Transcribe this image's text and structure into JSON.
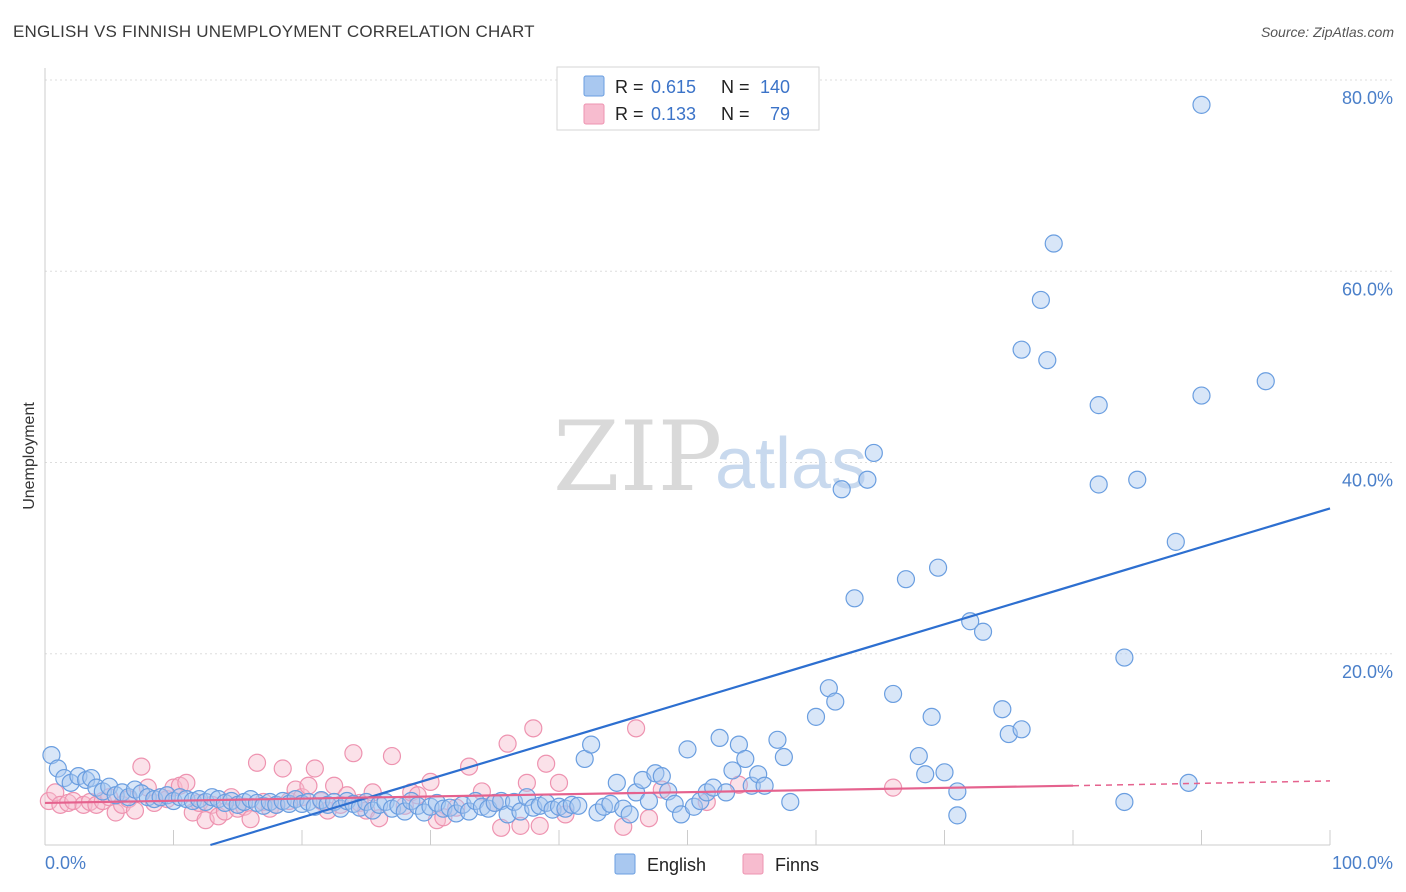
{
  "title": "ENGLISH VS FINNISH UNEMPLOYMENT CORRELATION CHART",
  "source": "Source: ZipAtlas.com",
  "watermark": {
    "zip": "ZIP",
    "atlas": "atlas"
  },
  "colors": {
    "english_fill": "#a9c8f0",
    "english_stroke": "#6a9ee0",
    "english_line": "#2d6fd0",
    "finns_fill": "#f7bccf",
    "finns_stroke": "#ee93b0",
    "finns_line": "#e5628e",
    "tick_text": "#4a7fc9",
    "grid": "#dddddd"
  },
  "legend_top": {
    "rows": [
      {
        "r_label": "R = ",
        "r_value": "0.615",
        "n_label": "N = ",
        "n_value": "140"
      },
      {
        "r_label": "R = ",
        "r_value": "0.133",
        "n_label": "N = ",
        "n_value": "79"
      }
    ]
  },
  "legend_bottom": [
    "English",
    "Finns"
  ],
  "chart_data": {
    "type": "scatter",
    "xlabel": "",
    "ylabel": "Unemployment",
    "xlim": [
      0,
      100
    ],
    "ylim": [
      0,
      80
    ],
    "x_tick_labels": [
      "0.0%",
      "100.0%"
    ],
    "y_ticks": [
      20,
      40,
      60,
      80
    ],
    "y_tick_labels": [
      "20.0%",
      "40.0%",
      "60.0%",
      "80.0%"
    ],
    "grid": true,
    "legend_position": "top-center",
    "series": [
      {
        "name": "English",
        "trend": {
          "x0": 0,
          "y0": -5.2,
          "x1": 100,
          "y1": 35.2
        },
        "points": [
          [
            0.5,
            9.4
          ],
          [
            1,
            8
          ],
          [
            1.5,
            7
          ],
          [
            2,
            6.5
          ],
          [
            2.6,
            7.2
          ],
          [
            3.2,
            6.8
          ],
          [
            3.6,
            7
          ],
          [
            4,
            6
          ],
          [
            4.5,
            5.6
          ],
          [
            5,
            6.1
          ],
          [
            5.5,
            5.2
          ],
          [
            6,
            5.5
          ],
          [
            6.5,
            5
          ],
          [
            7,
            5.8
          ],
          [
            7.5,
            5.4
          ],
          [
            8,
            5
          ],
          [
            8.5,
            4.8
          ],
          [
            9,
            5
          ],
          [
            9.5,
            5.2
          ],
          [
            10,
            4.6
          ],
          [
            10.5,
            5
          ],
          [
            11,
            4.8
          ],
          [
            11.5,
            4.6
          ],
          [
            12,
            4.8
          ],
          [
            12.5,
            4.5
          ],
          [
            13,
            5
          ],
          [
            13.5,
            4.8
          ],
          [
            14,
            4.4
          ],
          [
            14.5,
            4.6
          ],
          [
            15,
            4.2
          ],
          [
            15.5,
            4.5
          ],
          [
            16,
            4.8
          ],
          [
            16.5,
            4.4
          ],
          [
            17,
            4.1
          ],
          [
            17.5,
            4.5
          ],
          [
            18,
            4.2
          ],
          [
            18.5,
            4.6
          ],
          [
            19,
            4.3
          ],
          [
            19.5,
            4.8
          ],
          [
            20,
            4.3
          ],
          [
            20.5,
            4.5
          ],
          [
            21,
            4
          ],
          [
            21.5,
            4.7
          ],
          [
            22,
            4.2
          ],
          [
            22.5,
            4.5
          ],
          [
            23,
            3.8
          ],
          [
            23.5,
            4.6
          ],
          [
            24,
            4.3
          ],
          [
            24.5,
            3.9
          ],
          [
            25,
            4.5
          ],
          [
            25.5,
            3.6
          ],
          [
            26,
            4.2
          ],
          [
            26.5,
            4.5
          ],
          [
            27,
            3.8
          ],
          [
            27.5,
            4.1
          ],
          [
            28,
            3.5
          ],
          [
            28.5,
            4.6
          ],
          [
            29,
            4.1
          ],
          [
            29.5,
            3.4
          ],
          [
            30,
            4
          ],
          [
            30.5,
            4.4
          ],
          [
            31,
            3.8
          ],
          [
            31.5,
            3.9
          ],
          [
            32,
            3.3
          ],
          [
            32.5,
            4.2
          ],
          [
            33,
            3.5
          ],
          [
            33.5,
            4.6
          ],
          [
            34,
            4
          ],
          [
            34.5,
            3.8
          ],
          [
            35,
            4.4
          ],
          [
            35.5,
            4.6
          ],
          [
            36,
            3.2
          ],
          [
            36.5,
            4.5
          ],
          [
            37,
            3.5
          ],
          [
            37.5,
            5
          ],
          [
            38,
            3.9
          ],
          [
            38.5,
            4.1
          ],
          [
            39,
            4.4
          ],
          [
            39.5,
            3.7
          ],
          [
            40,
            4
          ],
          [
            40.5,
            3.8
          ],
          [
            41,
            4.2
          ],
          [
            41.5,
            4.1
          ],
          [
            42,
            9
          ],
          [
            42.5,
            10.5
          ],
          [
            43,
            3.4
          ],
          [
            43.5,
            4
          ],
          [
            44,
            4.3
          ],
          [
            44.5,
            6.5
          ],
          [
            45,
            3.8
          ],
          [
            45.5,
            3.2
          ],
          [
            46,
            5.5
          ],
          [
            46.5,
            6.8
          ],
          [
            47,
            4.6
          ],
          [
            47.5,
            7.5
          ],
          [
            48,
            7.2
          ],
          [
            48.5,
            5.6
          ],
          [
            49,
            4.3
          ],
          [
            49.5,
            3.2
          ],
          [
            50,
            10
          ],
          [
            50.5,
            4
          ],
          [
            51,
            4.6
          ],
          [
            51.5,
            5.5
          ],
          [
            52,
            6
          ],
          [
            52.5,
            11.2
          ],
          [
            53,
            5.5
          ],
          [
            53.5,
            7.8
          ],
          [
            54,
            10.5
          ],
          [
            54.5,
            9
          ],
          [
            55,
            6.2
          ],
          [
            55.5,
            7.4
          ],
          [
            56,
            6.2
          ],
          [
            57,
            11
          ],
          [
            57.5,
            9.2
          ],
          [
            58,
            4.5
          ],
          [
            60,
            13.4
          ],
          [
            61,
            16.4
          ],
          [
            61.5,
            15
          ],
          [
            62,
            37.2
          ],
          [
            63,
            25.8
          ],
          [
            64,
            38.2
          ],
          [
            64.5,
            41
          ],
          [
            66,
            15.8
          ],
          [
            67,
            27.8
          ],
          [
            68,
            9.3
          ],
          [
            68.5,
            7.4
          ],
          [
            69,
            13.4
          ],
          [
            69.5,
            29
          ],
          [
            70,
            7.6
          ],
          [
            71,
            5.6
          ],
          [
            71,
            3.1
          ],
          [
            72,
            23.4
          ],
          [
            73,
            22.3
          ],
          [
            74.5,
            14.2
          ],
          [
            75,
            11.6
          ],
          [
            76,
            51.8
          ],
          [
            76,
            12.1
          ],
          [
            77.5,
            57
          ],
          [
            78,
            50.7
          ],
          [
            78.5,
            62.9
          ],
          [
            82,
            46
          ],
          [
            82,
            37.7
          ],
          [
            84,
            4.5
          ],
          [
            84,
            19.6
          ],
          [
            85,
            38.2
          ],
          [
            88,
            31.7
          ],
          [
            89,
            6.5
          ],
          [
            90,
            47
          ],
          [
            90,
            77.4
          ],
          [
            95,
            48.5
          ]
        ]
      },
      {
        "name": "Finns",
        "trend": {
          "x0": 0,
          "y0": 4.4,
          "x1": 80,
          "y1": 6.2
        },
        "trend_dashed": {
          "x0": 80,
          "y0": 6.2,
          "x1": 100,
          "y1": 6.7
        },
        "points": [
          [
            0.3,
            4.6
          ],
          [
            0.8,
            5.5
          ],
          [
            1.2,
            4.2
          ],
          [
            1.8,
            4.4
          ],
          [
            2.2,
            4.6
          ],
          [
            3,
            4.2
          ],
          [
            3.5,
            4.5
          ],
          [
            4,
            4.2
          ],
          [
            4.5,
            4.6
          ],
          [
            5,
            5
          ],
          [
            5.5,
            3.4
          ],
          [
            6,
            4.2
          ],
          [
            6.5,
            4.8
          ],
          [
            7,
            3.6
          ],
          [
            7.5,
            8.2
          ],
          [
            8,
            6
          ],
          [
            8.5,
            4.4
          ],
          [
            9,
            5
          ],
          [
            9.5,
            4.8
          ],
          [
            10,
            6
          ],
          [
            10.5,
            6.2
          ],
          [
            11,
            6.5
          ],
          [
            11.5,
            3.4
          ],
          [
            12,
            4.4
          ],
          [
            12.5,
            2.6
          ],
          [
            13,
            4.2
          ],
          [
            13.5,
            3
          ],
          [
            14,
            3.5
          ],
          [
            14.5,
            5
          ],
          [
            15,
            3.8
          ],
          [
            15.5,
            4
          ],
          [
            16,
            2.7
          ],
          [
            16.5,
            8.6
          ],
          [
            17,
            4.5
          ],
          [
            17.5,
            3.8
          ],
          [
            18,
            4.2
          ],
          [
            18.5,
            8
          ],
          [
            19,
            4.6
          ],
          [
            19.5,
            5.8
          ],
          [
            20,
            5
          ],
          [
            20.5,
            6.2
          ],
          [
            21,
            8
          ],
          [
            21.5,
            4.6
          ],
          [
            22,
            3.6
          ],
          [
            22.5,
            6.2
          ],
          [
            23,
            4.2
          ],
          [
            23.5,
            5.2
          ],
          [
            24,
            9.6
          ],
          [
            24.5,
            4.4
          ],
          [
            25,
            3.6
          ],
          [
            25.5,
            5.5
          ],
          [
            26,
            2.8
          ],
          [
            27,
            9.3
          ],
          [
            28,
            4.1
          ],
          [
            28.5,
            5.5
          ],
          [
            29,
            5.2
          ],
          [
            30,
            6.6
          ],
          [
            30.5,
            2.6
          ],
          [
            31,
            2.9
          ],
          [
            32,
            3.9
          ],
          [
            33,
            8.2
          ],
          [
            34,
            5.6
          ],
          [
            35,
            4.4
          ],
          [
            35.5,
            1.8
          ],
          [
            36,
            10.6
          ],
          [
            37,
            2
          ],
          [
            37.5,
            6.5
          ],
          [
            38,
            12.2
          ],
          [
            38.5,
            2
          ],
          [
            39,
            8.5
          ],
          [
            40,
            6.5
          ],
          [
            40.5,
            3.2
          ],
          [
            45,
            1.9
          ],
          [
            46,
            12.2
          ],
          [
            47,
            2.8
          ],
          [
            48,
            5.8
          ],
          [
            51.5,
            4.5
          ],
          [
            54,
            6.3
          ],
          [
            66,
            6
          ]
        ]
      }
    ]
  }
}
